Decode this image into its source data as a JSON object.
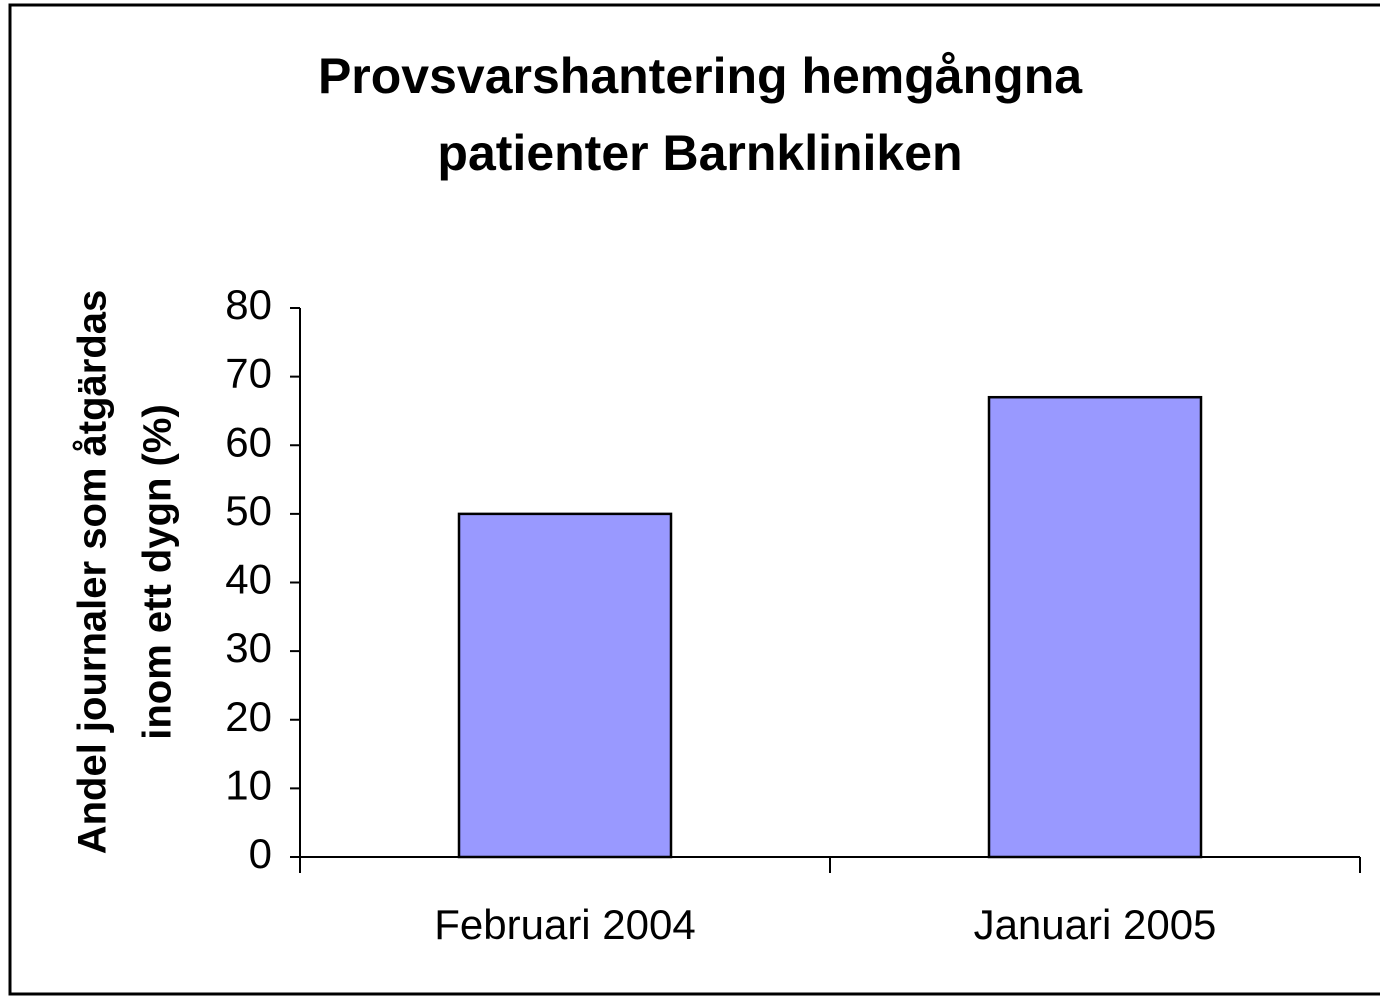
{
  "chart_data": {
    "type": "bar",
    "title": [
      "Provsvarshantering hemgångna",
      "patienter Barnkliniken"
    ],
    "y_label": [
      "Andel journaler som åtgärdas",
      "inom ett dygn (%)"
    ],
    "categories": [
      "Februari 2004",
      "Januari 2005"
    ],
    "values": [
      50,
      67
    ],
    "color": "#9999ff",
    "ylim": [
      0,
      80
    ],
    "yticks": [
      0,
      10,
      20,
      30,
      40,
      50,
      60,
      70,
      80
    ],
    "grid": false
  }
}
